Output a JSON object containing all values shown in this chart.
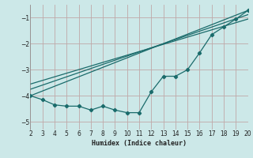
{
  "xlabel": "Humidex (Indice chaleur)",
  "bg_color": "#cce8e8",
  "grid_color": "#c0a8a8",
  "line_color": "#1a6b6b",
  "xlim": [
    2,
    20
  ],
  "ylim": [
    -5.3,
    -0.5
  ],
  "xticks": [
    2,
    3,
    4,
    5,
    6,
    7,
    8,
    9,
    10,
    11,
    12,
    13,
    14,
    15,
    16,
    17,
    18,
    19,
    20
  ],
  "yticks": [
    -5,
    -4,
    -3,
    -2,
    -1
  ],
  "data_x": [
    2,
    3,
    4,
    5,
    6,
    7,
    8,
    9,
    10,
    11,
    12,
    13,
    14,
    15,
    16,
    17,
    18,
    19,
    20
  ],
  "data_y": [
    -4.0,
    -4.15,
    -4.35,
    -4.4,
    -4.4,
    -4.55,
    -4.4,
    -4.55,
    -4.65,
    -4.65,
    -3.85,
    -3.25,
    -3.25,
    -3.0,
    -2.35,
    -1.65,
    -1.35,
    -1.05,
    -0.72
  ],
  "line1_x": [
    2,
    20
  ],
  "line1_y": [
    -4.0,
    -0.72
  ],
  "line2_x": [
    2,
    20
  ],
  "line2_y": [
    -3.75,
    -0.88
  ],
  "line3_x": [
    2,
    20
  ],
  "line3_y": [
    -3.55,
    -1.05
  ]
}
